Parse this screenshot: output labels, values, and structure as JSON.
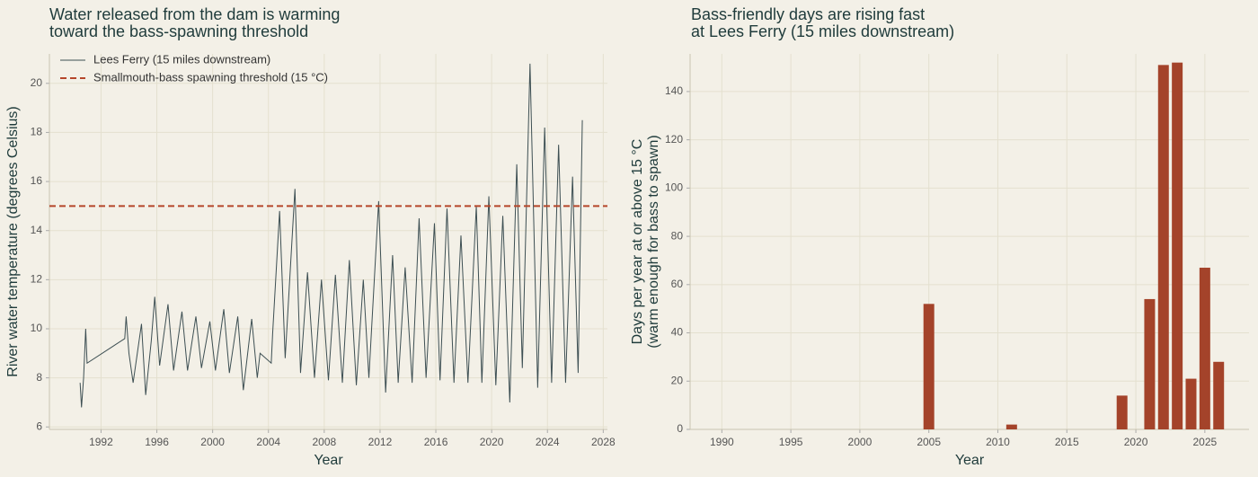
{
  "chart_data": [
    {
      "type": "line",
      "title": [
        "Water released from the dam is warming",
        "toward the bass-spawning threshold"
      ],
      "xlabel": "Year",
      "ylabel": "River water temperature (degrees Celsius)",
      "xlim": [
        1988.3,
        2028.3
      ],
      "xticks": [
        1992,
        1996,
        2000,
        2004,
        2008,
        2012,
        2016,
        2020,
        2024,
        2028
      ],
      "ylim": [
        5.9,
        21.2
      ],
      "yticks": [
        6,
        8,
        10,
        12,
        14,
        16,
        18,
        20
      ],
      "grid": true,
      "legend": "upper left",
      "series": [
        {
          "name": "Lees Ferry (15 miles downstream)",
          "color": "#3d4f53",
          "x": [
            1990.5,
            1990.6,
            1990.75,
            1990.9,
            1991.0,
            1993.7,
            1993.8,
            1994.0,
            1994.3,
            1994.6,
            1994.9,
            1995.2,
            1995.6,
            1995.85,
            1996.2,
            1996.8,
            1997.2,
            1997.8,
            1998.2,
            1998.8,
            1999.2,
            1999.8,
            2000.2,
            2000.8,
            2001.2,
            2001.8,
            2002.2,
            2002.8,
            2003.2,
            2003.4,
            2004.2,
            2004.3,
            2004.8,
            2005.2,
            2005.9,
            2006.3,
            2006.8,
            2007.3,
            2007.8,
            2008.3,
            2008.8,
            2009.3,
            2009.8,
            2010.3,
            2010.8,
            2011.2,
            2011.9,
            2012.4,
            2012.9,
            2013.3,
            2013.8,
            2014.3,
            2014.8,
            2015.3,
            2015.9,
            2016.3,
            2016.8,
            2017.3,
            2017.8,
            2018.3,
            2018.9,
            2019.3,
            2019.8,
            2020.3,
            2020.8,
            2021.3,
            2021.8,
            2022.2,
            2022.75,
            2023.3,
            2023.8,
            2024.3,
            2024.8,
            2025.3,
            2025.8,
            2026.2,
            2026.5
          ],
          "values": [
            7.8,
            6.8,
            8.0,
            10.0,
            8.6,
            9.6,
            10.5,
            9.0,
            7.8,
            9.0,
            10.2,
            7.3,
            9.5,
            11.3,
            8.5,
            11.0,
            8.3,
            10.7,
            8.3,
            10.5,
            8.4,
            10.3,
            8.3,
            10.8,
            8.2,
            10.5,
            7.5,
            10.4,
            8.0,
            9.0,
            8.6,
            9.8,
            14.8,
            8.8,
            15.7,
            8.2,
            12.3,
            8.0,
            12.0,
            7.9,
            12.2,
            7.8,
            12.8,
            7.7,
            12.0,
            8.0,
            15.2,
            7.4,
            13.0,
            7.8,
            12.5,
            7.8,
            14.5,
            8.0,
            14.3,
            7.9,
            14.9,
            7.8,
            13.8,
            7.8,
            15.0,
            7.8,
            15.4,
            7.7,
            14.6,
            7.0,
            16.7,
            8.4,
            20.8,
            7.6,
            18.2,
            7.8,
            17.5,
            7.8,
            16.2,
            8.2,
            18.5
          ]
        }
      ],
      "hline": {
        "name": "Smallmouth-bass spawning threshold (15 °C)",
        "value": 15,
        "color": "#b5462a"
      }
    },
    {
      "type": "bar",
      "title": [
        "Bass-friendly days are rising fast",
        "at Lees Ferry (15 miles downstream)"
      ],
      "xlabel": "Year",
      "ylabel": [
        "Days per year at or above 15 °C",
        "(warm enough for bass to spawn)"
      ],
      "xlim": [
        1987.7,
        2028.2
      ],
      "xticks": [
        1990,
        1995,
        2000,
        2005,
        2010,
        2015,
        2020,
        2025
      ],
      "ylim": [
        0,
        155.6
      ],
      "yticks": [
        0,
        20,
        40,
        60,
        80,
        100,
        120,
        140
      ],
      "grid": true,
      "color": "#a4432a",
      "x": [
        2005,
        2011,
        2019,
        2021,
        2022,
        2023,
        2024,
        2025,
        2026
      ],
      "values": [
        52,
        2,
        14,
        54,
        151,
        152,
        21,
        67,
        28
      ]
    }
  ]
}
